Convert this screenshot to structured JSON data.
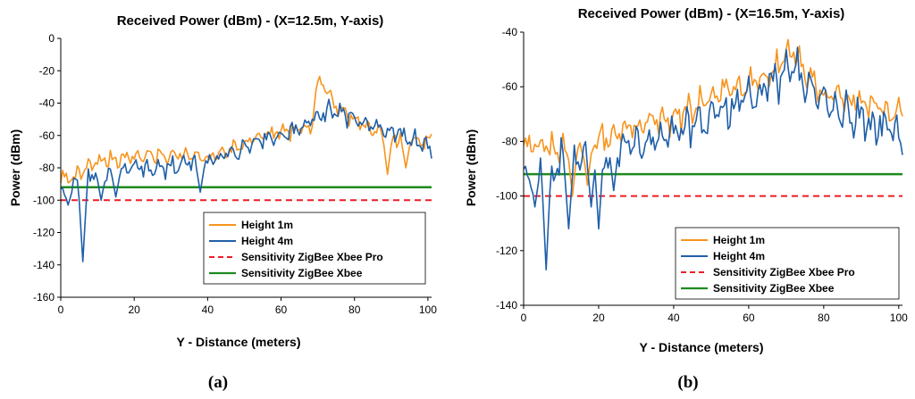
{
  "figure": {
    "colors": {
      "height_1m": "#F7941D",
      "height_4m": "#1F5FA8",
      "sensitivity_pro": "#EE1C25",
      "sensitivity_xbee": "#1E8B1E"
    }
  },
  "chart_data": [
    {
      "panel_label": "a",
      "type": "line",
      "title": "Received Power (dBm) - (X=12.5m, Y-axis)",
      "xlabel": "Y - Distance (meters)",
      "ylabel": "Power (dBm)",
      "xlim": [
        0,
        101
      ],
      "ylim": [
        -160,
        0
      ],
      "xticks": [
        0,
        20,
        40,
        60,
        80,
        100
      ],
      "yticks": [
        0,
        -20,
        -40,
        -60,
        -80,
        -100,
        -120,
        -140,
        -160
      ],
      "legend_position": "bottom-right",
      "legend": [
        "Height 1m",
        "Height 4m",
        "Sensitivity ZigBee Xbee Pro",
        "Sensitivity ZigBee Xbee"
      ],
      "series": [
        {
          "name": "Height 1m",
          "style": "solid",
          "color_key": "height_1m",
          "envelope": [
            [
              0,
              -88
            ],
            [
              5,
              -84
            ],
            [
              10,
              -76
            ],
            [
              20,
              -73
            ],
            [
              30,
              -72
            ],
            [
              40,
              -74
            ],
            [
              48,
              -67
            ],
            [
              55,
              -60
            ],
            [
              62,
              -58
            ],
            [
              68,
              -55
            ],
            [
              70,
              -26
            ],
            [
              72,
              -30
            ],
            [
              75,
              -42
            ],
            [
              80,
              -50
            ],
            [
              88,
              -60
            ],
            [
              95,
              -63
            ],
            [
              100,
              -63
            ],
            [
              101,
              -62
            ]
          ],
          "amplitude": 5,
          "spikes": [
            [
              89,
              -84
            ],
            [
              94,
              -80
            ]
          ]
        },
        {
          "name": "Height 4m",
          "style": "solid",
          "color_key": "height_4m",
          "envelope": [
            [
              0,
              -96
            ],
            [
              5,
              -88
            ],
            [
              10,
              -84
            ],
            [
              20,
              -80
            ],
            [
              30,
              -80
            ],
            [
              40,
              -76
            ],
            [
              48,
              -70
            ],
            [
              55,
              -62
            ],
            [
              62,
              -60
            ],
            [
              68,
              -52
            ],
            [
              72,
              -47
            ],
            [
              75,
              -44
            ],
            [
              80,
              -50
            ],
            [
              88,
              -56
            ],
            [
              95,
              -62
            ],
            [
              100,
              -67
            ],
            [
              101,
              -72
            ]
          ],
          "amplitude": 6,
          "spikes": [
            [
              2,
              -103
            ],
            [
              6,
              -138
            ],
            [
              11,
              -100
            ],
            [
              15,
              -98
            ],
            [
              38,
              -95
            ]
          ]
        },
        {
          "name": "Sensitivity ZigBee Xbee Pro",
          "style": "dashed",
          "color_key": "sensitivity_pro",
          "x": [
            0,
            101
          ],
          "y": [
            -100,
            -100
          ]
        },
        {
          "name": "Sensitivity ZigBee Xbee",
          "style": "solid",
          "color_key": "sensitivity_xbee",
          "x": [
            0,
            101
          ],
          "y": [
            -92,
            -92
          ]
        }
      ]
    },
    {
      "panel_label": "b",
      "type": "line",
      "title": "Received Power (dBm) - (X=16.5m, Y-axis)",
      "xlabel": "Y - Distance (meters)",
      "ylabel": "Power (dBm)",
      "xlim": [
        0,
        101
      ],
      "ylim": [
        -140,
        -40
      ],
      "xticks": [
        0,
        20,
        40,
        60,
        80,
        100
      ],
      "yticks": [
        -40,
        -60,
        -80,
        -100,
        -120,
        -140
      ],
      "legend_position": "bottom-right",
      "legend": [
        "Height 1m",
        "Height 4m",
        "Sensitivity ZigBee Xbee Pro",
        "Sensitivity ZigBee Xbee"
      ],
      "series": [
        {
          "name": "Height 1m",
          "style": "solid",
          "color_key": "height_1m",
          "envelope": [
            [
              0,
              -80
            ],
            [
              5,
              -82
            ],
            [
              10,
              -84
            ],
            [
              20,
              -80
            ],
            [
              30,
              -74
            ],
            [
              40,
              -72
            ],
            [
              50,
              -64
            ],
            [
              60,
              -58
            ],
            [
              65,
              -56
            ],
            [
              70,
              -48
            ],
            [
              72,
              -47
            ],
            [
              75,
              -55
            ],
            [
              80,
              -62
            ],
            [
              90,
              -66
            ],
            [
              95,
              -68
            ],
            [
              100,
              -70
            ],
            [
              101,
              -72
            ]
          ],
          "amplitude": 5,
          "spikes": [
            [
              13,
              -100
            ],
            [
              17,
              -96
            ]
          ]
        },
        {
          "name": "Height 4m",
          "style": "solid",
          "color_key": "height_4m",
          "envelope": [
            [
              0,
              -94
            ],
            [
              5,
              -90
            ],
            [
              10,
              -88
            ],
            [
              20,
              -84
            ],
            [
              30,
              -80
            ],
            [
              40,
              -78
            ],
            [
              50,
              -70
            ],
            [
              60,
              -64
            ],
            [
              65,
              -60
            ],
            [
              72,
              -53
            ],
            [
              75,
              -58
            ],
            [
              80,
              -66
            ],
            [
              90,
              -72
            ],
            [
              95,
              -74
            ],
            [
              100,
              -76
            ],
            [
              101,
              -80
            ]
          ],
          "amplitude": 7,
          "spikes": [
            [
              3,
              -104
            ],
            [
              6,
              -127
            ],
            [
              12,
              -112
            ],
            [
              18,
              -104
            ],
            [
              20,
              -112
            ],
            [
              24,
              -98
            ]
          ]
        },
        {
          "name": "Sensitivity ZigBee Xbee Pro",
          "style": "dashed",
          "color_key": "sensitivity_pro",
          "x": [
            0,
            101
          ],
          "y": [
            -100,
            -100
          ]
        },
        {
          "name": "Sensitivity ZigBee Xbee",
          "style": "solid",
          "color_key": "sensitivity_xbee",
          "x": [
            0,
            101
          ],
          "y": [
            -92,
            -92
          ]
        }
      ]
    }
  ]
}
